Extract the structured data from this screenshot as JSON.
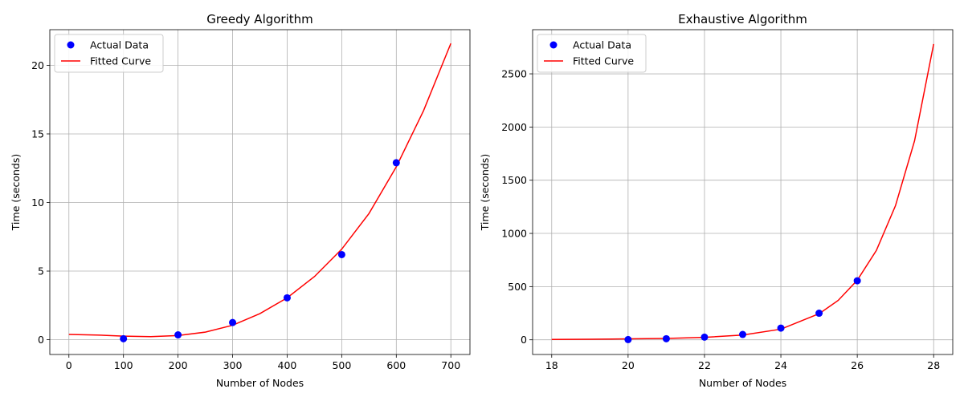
{
  "chart_data": [
    {
      "type": "scatter",
      "title": "Greedy Algorithm",
      "xlabel": "Number of Nodes",
      "ylabel": "Time (seconds)",
      "xlim": [
        -35,
        735
      ],
      "ylim": [
        -1.08,
        22.6
      ],
      "xticks": [
        0,
        100,
        200,
        300,
        400,
        500,
        600,
        700
      ],
      "xtick_labels": [
        "0",
        "100",
        "200",
        "300",
        "400",
        "500",
        "600",
        "700"
      ],
      "yticks": [
        0,
        5,
        10,
        15,
        20
      ],
      "ytick_labels": [
        "0",
        "5",
        "10",
        "15",
        "20"
      ],
      "grid": true,
      "legend_position": "upper-left",
      "series": [
        {
          "name": "Actual Data",
          "kind": "scatter",
          "color": "#0000ff",
          "x": [
            100,
            200,
            300,
            400,
            500,
            600
          ],
          "y": [
            0.07,
            0.35,
            1.25,
            3.05,
            6.2,
            12.9
          ]
        },
        {
          "name": "Fitted Curve",
          "kind": "line",
          "color": "#ff0000",
          "x": [
            0,
            50,
            100,
            150,
            200,
            250,
            300,
            350,
            400,
            450,
            500,
            550,
            600,
            650,
            700
          ],
          "y": [
            0.38,
            0.34,
            0.26,
            0.22,
            0.3,
            0.55,
            1.05,
            1.9,
            3.05,
            4.6,
            6.6,
            9.2,
            12.6,
            16.7,
            21.6
          ]
        }
      ]
    },
    {
      "type": "scatter",
      "title": "Exhaustive Algorithm",
      "xlabel": "Number of Nodes",
      "ylabel": "Time (seconds)",
      "xlim": [
        17.5,
        28.5
      ],
      "ylim": [
        -138,
        2915
      ],
      "xticks": [
        18,
        20,
        22,
        24,
        26,
        28
      ],
      "xtick_labels": [
        "18",
        "20",
        "22",
        "24",
        "26",
        "28"
      ],
      "yticks": [
        0,
        500,
        1000,
        1500,
        2000,
        2500
      ],
      "ytick_labels": [
        "0",
        "500",
        "1000",
        "1500",
        "2000",
        "2500"
      ],
      "grid": true,
      "legend_position": "upper-left",
      "series": [
        {
          "name": "Actual Data",
          "kind": "scatter",
          "color": "#0000ff",
          "x": [
            20,
            21,
            22,
            23,
            24,
            25,
            26
          ],
          "y": [
            2,
            10,
            25,
            50,
            110,
            250,
            555
          ]
        },
        {
          "name": "Fitted Curve",
          "kind": "line",
          "color": "#ff0000",
          "x": [
            18,
            19,
            20,
            21,
            22,
            23,
            24,
            25,
            25.5,
            26,
            26.5,
            27,
            27.5,
            28
          ],
          "y": [
            3,
            5,
            9,
            13,
            23,
            45,
            100,
            245,
            370,
            560,
            840,
            1260,
            1870,
            2780
          ]
        }
      ]
    }
  ]
}
